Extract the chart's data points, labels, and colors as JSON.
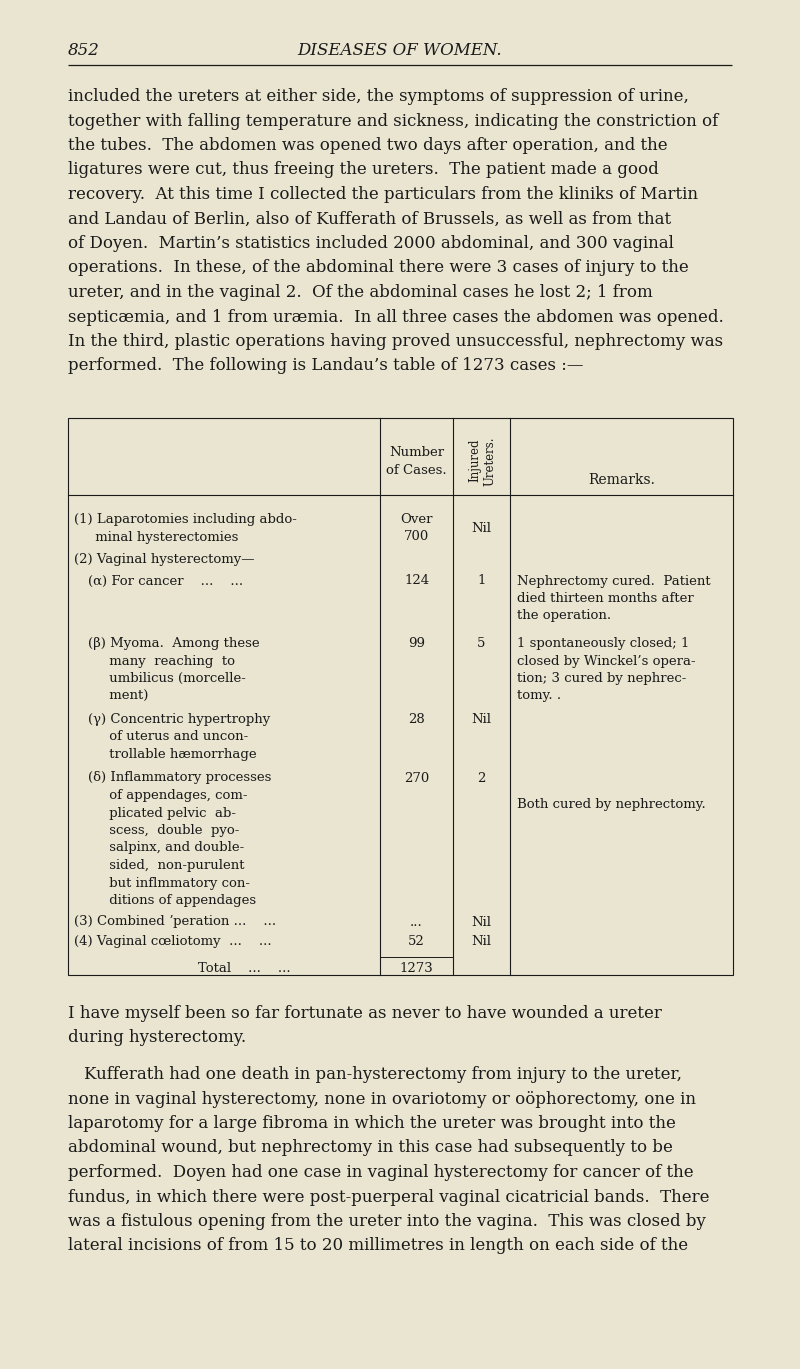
{
  "bg_color": "#EAE5D0",
  "text_color": "#1a1a1a",
  "page_number": "852",
  "page_title": "DISEASES OF WOMEN.",
  "p1_lines": [
    "included the ureters at either side, the symptoms of suppression of urine,",
    "together with falling temperature and sickness, indicating the constriction of",
    "the tubes.  The abdomen was opened two days after operation, and the",
    "ligatures were cut, thus freeing the ureters.  The patient made a good",
    "recovery.  At this time I collected the particulars from the kliniks of Martin",
    "and Landau of Berlin, also of Kufferath of Brussels, as well as from that",
    "of Doyen.  Martin’s statistics included 2000 abdominal, and 300 vaginal",
    "operations.  In these, of the abdominal there were 3 cases of injury to the",
    "ureter, and in the vaginal 2.  Of the abdominal cases he lost 2; 1 from",
    "septicæmia, and 1 from uræmia.  In all three cases the abdomen was opened.",
    "In the third, plastic operations having proved unsuccessful, nephrectomy was",
    "performed.  The following is Landau’s table of 1273 cases :—"
  ],
  "p2_lines": [
    "I have myself been so far fortunate as never to have wounded a ureter",
    "during hysterectomy."
  ],
  "p3_lines": [
    "Kufferath had one death in pan-hysterectomy from injury to the ureter,",
    "none in vaginal hysterectomy, none in ovariotomy or oöphorectomy, one in",
    "laparotomy for a large fibroma in which the ureter was brought into the",
    "abdominal wound, but nephrectomy in this case had subsequently to be",
    "performed.  Doyen had one case in vaginal hysterectomy for cancer of the",
    "fundus, in which there were post-puerperal vaginal cicatricial bands.  There",
    "was a fistulous opening from the ureter into the vagina.  This was closed by",
    "lateral incisions of from 15 to 20 millimetres in length on each side of the"
  ]
}
